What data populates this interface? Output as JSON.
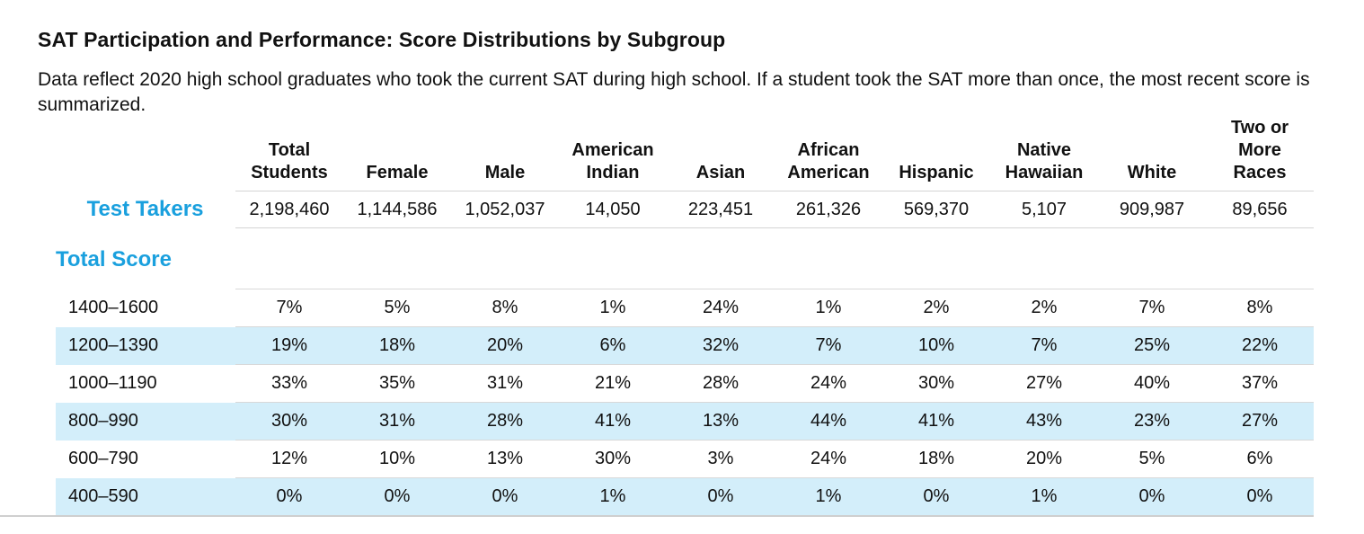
{
  "title": "SAT Participation and Performance: Score Distributions by Subgroup",
  "description": "Data reflect 2020 high school graduates who took the current SAT during high school. If a student took the SAT more than once, the most recent score is summarized.",
  "columns": [
    [
      "Total",
      "Students"
    ],
    [
      "Female"
    ],
    [
      "Male"
    ],
    [
      "American",
      "Indian"
    ],
    [
      "Asian"
    ],
    [
      "African",
      "American"
    ],
    [
      "Hispanic"
    ],
    [
      "Native",
      "Hawaiian"
    ],
    [
      "White"
    ],
    [
      "Two or",
      "More",
      "Races"
    ]
  ],
  "test_takers": {
    "label": "Test Takers",
    "values": [
      "2,198,460",
      "1,144,586",
      "1,052,037",
      "14,050",
      "223,451",
      "261,326",
      "569,370",
      "5,107",
      "909,987",
      "89,656"
    ]
  },
  "total_score": {
    "label": "Total Score",
    "rows": [
      {
        "range": "1400–1600",
        "values": [
          "7%",
          "5%",
          "8%",
          "1%",
          "24%",
          "1%",
          "2%",
          "2%",
          "7%",
          "8%"
        ]
      },
      {
        "range": "1200–1390",
        "values": [
          "19%",
          "18%",
          "20%",
          "6%",
          "32%",
          "7%",
          "10%",
          "7%",
          "25%",
          "22%"
        ]
      },
      {
        "range": "1000–1190",
        "values": [
          "33%",
          "35%",
          "31%",
          "21%",
          "28%",
          "24%",
          "30%",
          "27%",
          "40%",
          "37%"
        ]
      },
      {
        "range": "800–990",
        "values": [
          "30%",
          "31%",
          "28%",
          "41%",
          "13%",
          "44%",
          "41%",
          "43%",
          "23%",
          "27%"
        ]
      },
      {
        "range": "600–790",
        "values": [
          "12%",
          "10%",
          "13%",
          "30%",
          "3%",
          "24%",
          "18%",
          "20%",
          "5%",
          "6%"
        ]
      },
      {
        "range": "400–590",
        "values": [
          "0%",
          "0%",
          "0%",
          "1%",
          "0%",
          "1%",
          "0%",
          "1%",
          "0%",
          "0%"
        ]
      }
    ]
  },
  "colors": {
    "accent": "#1aa0de",
    "stripe": "#d3eefa"
  }
}
